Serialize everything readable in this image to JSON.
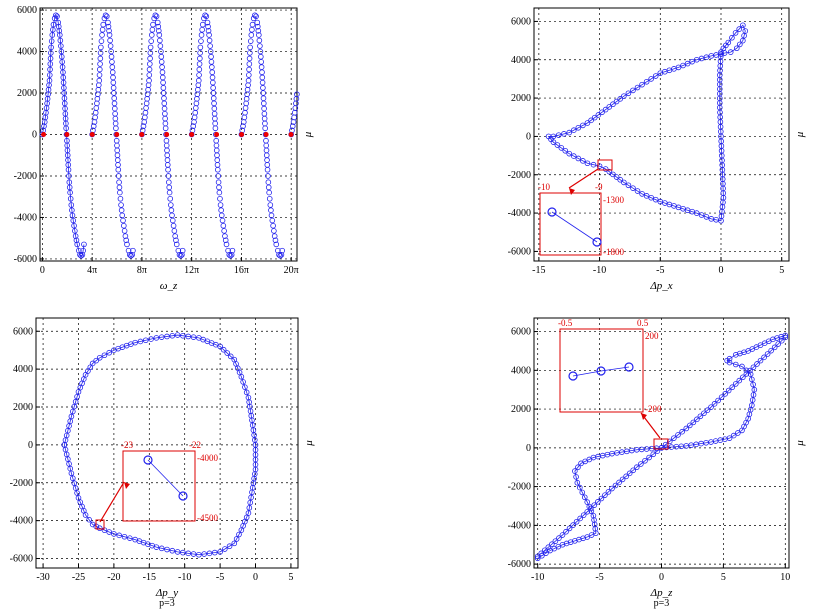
{
  "chart_data": [
    {
      "type": "scatter",
      "subtitle": "",
      "xlabel": "ω_z",
      "ylabel": "μ",
      "xlim": [
        -0.6,
        64.3
      ],
      "ylim": [
        -6100,
        6100
      ],
      "xticks": [
        "0",
        "4π",
        "8π",
        "12π",
        "16π",
        "20π"
      ],
      "xtick_values": [
        0,
        12.566,
        25.133,
        37.699,
        50.265,
        62.832
      ],
      "yticks": [
        -6000,
        -4000,
        -2000,
        0,
        2000,
        4000,
        6000
      ],
      "grid": true,
      "series": [
        {
          "values_desc": "",
          "x": [
            0,
            0.6,
            1.2,
            1.8,
            2.0,
            2.2,
            2.5,
            2.8,
            3.1,
            3.4,
            3.7,
            4.0,
            4.4,
            4.8,
            5.2,
            5.5,
            5.8,
            6.0,
            6.1,
            6.2,
            6.4,
            6.6,
            6.8,
            7.0,
            7.3,
            7.6,
            8.0,
            8.4,
            8.8,
            9.2,
            9.5,
            9.8,
            10.1,
            10.3,
            10.5
          ],
          "y": [
            0,
            600,
            1500,
            2600,
            3400,
            4200,
            4800,
            5300,
            5600,
            5750,
            5700,
            5400,
            4800,
            4000,
            3000,
            2000,
            1000,
            300,
            0,
            -300,
            -1000,
            -1700,
            -2300,
            -2800,
            -3400,
            -3900,
            -4400,
            -4900,
            -5300,
            -5600,
            -5800,
            -5850,
            -5800,
            -5600,
            -5300
          ]
        }
      ],
      "red_points": {
        "x": [
          0.3,
          6.2,
          12.6,
          18.8,
          25.1,
          31.4,
          37.7,
          44.0,
          50.3,
          56.5,
          62.8
        ],
        "y": [
          0,
          0,
          0,
          0,
          0,
          0,
          0,
          0,
          0,
          0,
          0
        ]
      }
    },
    {
      "type": "scatter",
      "subtitle": "",
      "xlabel": "Δp_x",
      "ylabel": "μ",
      "xlim": [
        -15.4,
        5.6
      ],
      "ylim": [
        -6500,
        6700
      ],
      "xticks": [
        -15,
        -10,
        -5,
        0,
        5
      ],
      "yticks": [
        -6000,
        -4000,
        -2000,
        0,
        2000,
        4000,
        6000
      ],
      "grid": true,
      "series": [
        {
          "x": [
            0,
            -0.8,
            -2,
            -3.5,
            -5,
            -6.5,
            -8,
            -9.5,
            -11,
            -12.5,
            -13.8,
            -14.2,
            -13.8,
            -12.5,
            -11,
            -10,
            -9.5,
            -8,
            -6.5,
            -5,
            -3.5,
            -2,
            -0.8,
            0,
            0.2,
            0.1,
            0.0,
            -0.1,
            -0.1,
            0.0,
            0.2,
            0.6,
            1.2,
            1.8,
            2.0,
            1.8,
            1.3,
            0.8,
            0.3,
            0
          ],
          "y": [
            4300,
            4200,
            4000,
            3600,
            3300,
            2700,
            2100,
            1400,
            700,
            200,
            0,
            0,
            -300,
            -900,
            -1400,
            -1550,
            -1700,
            -2400,
            -3000,
            -3400,
            -3700,
            -4000,
            -4300,
            -4400,
            -3200,
            -1500,
            0,
            1500,
            3200,
            4400,
            4600,
            4900,
            5400,
            5800,
            5500,
            5000,
            4600,
            4400,
            4350,
            4300
          ]
        }
      ],
      "inset": {
        "xlim": [
          "-10",
          "-9"
        ],
        "ylim": [
          "-1300",
          "-1800"
        ]
      }
    },
    {
      "type": "scatter",
      "subtitle": "p=3",
      "xlabel": "Δp_y",
      "ylabel": "μ",
      "xlim": [
        -31,
        6
      ],
      "ylim": [
        -6500,
        6700
      ],
      "xticks": [
        -30,
        -25,
        -20,
        -15,
        -10,
        -5,
        0,
        5
      ],
      "yticks": [
        -6000,
        -4000,
        -2000,
        0,
        2000,
        4000,
        6000
      ],
      "grid": true,
      "series": [
        {
          "x": [
            -27,
            -26,
            -25,
            -24,
            -23,
            -22,
            -20,
            -17,
            -14,
            -11,
            -8,
            -5,
            -3,
            -2,
            -1,
            -0.5,
            0,
            0,
            -0.5,
            -1,
            -2,
            -3,
            -5,
            -8,
            -11,
            -14,
            -17,
            -20,
            -22,
            -23,
            -24,
            -25,
            -26,
            -27
          ],
          "y": [
            0,
            1500,
            2800,
            3700,
            4300,
            4600,
            5000,
            5400,
            5650,
            5800,
            5650,
            5200,
            4500,
            3600,
            2500,
            1300,
            0,
            -1300,
            -2500,
            -3600,
            -4500,
            -5200,
            -5650,
            -5800,
            -5650,
            -5400,
            -5000,
            -4700,
            -4400,
            -4200,
            -3700,
            -2800,
            -1500,
            0
          ]
        }
      ],
      "inset": {
        "xlim": [
          "-23",
          "-22"
        ],
        "ylim": [
          "-4000",
          "-4500"
        ]
      }
    },
    {
      "type": "scatter",
      "subtitle": "p=3",
      "xlabel": "Δp_z",
      "ylabel": "μ",
      "xlim": [
        -10.3,
        10.3
      ],
      "ylim": [
        -6200,
        6700
      ],
      "xticks": [
        -10,
        -5,
        0,
        5,
        10
      ],
      "yticks": [
        -6000,
        -4000,
        -2000,
        0,
        2000,
        4000,
        6000
      ],
      "grid": true,
      "series": [
        {
          "x": [
            -10,
            -9,
            -8,
            -7,
            -6,
            -5.3,
            -5.5,
            -6,
            -6.8,
            -7,
            -6.5,
            -5.5,
            -4,
            -2,
            0,
            2,
            4,
            5.5,
            6.5,
            7,
            7.3,
            7.5,
            7.2,
            6.5,
            6,
            5.5,
            5.3,
            5.5,
            6,
            7,
            8,
            9,
            10
          ],
          "y": [
            -5700,
            -5300,
            -5000,
            -4800,
            -4600,
            -4400,
            -3500,
            -2800,
            -1800,
            -1200,
            -800,
            -500,
            -300,
            -100,
            0,
            100,
            300,
            500,
            900,
            1500,
            2200,
            3000,
            3800,
            4200,
            4300,
            4400,
            4500,
            4600,
            4800,
            5000,
            5300,
            5600,
            5800
          ]
        },
        {
          "x": [
            -10,
            -8,
            -6,
            -4,
            -2,
            0,
            2,
            4,
            6,
            8,
            10
          ],
          "y": [
            -5600,
            -4500,
            -3300,
            -2100,
            -1000,
            0,
            1000,
            2100,
            3300,
            4500,
            5700
          ]
        }
      ],
      "inset": {
        "xlim": [
          "-0.5",
          "0.5"
        ],
        "ylim": [
          "200",
          "-200"
        ]
      }
    }
  ]
}
